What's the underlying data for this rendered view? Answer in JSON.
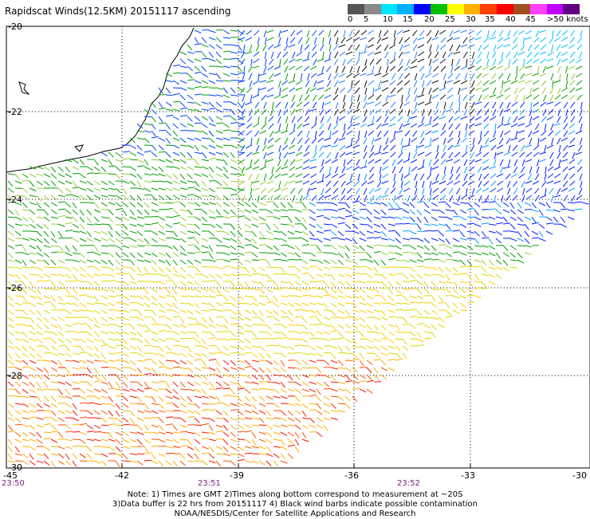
{
  "title": "Rapidscat Winds(12.5KM) 20151117 ascending",
  "legend": {
    "labels": [
      "0",
      "5",
      "10",
      "15",
      "20",
      "25",
      "30",
      "35",
      "40",
      "45",
      ">50 knots"
    ],
    "colors": [
      "#555555",
      "#8a8a8a",
      "#00e6ff",
      "#00b0ff",
      "#0000ff",
      "#00c000",
      "#ffff00",
      "#ffb000",
      "#ff4000",
      "#ff0000",
      "#a05020",
      "#ff40ff",
      "#c000ff",
      "#600080"
    ]
  },
  "axes": {
    "lat_labels": [
      "-20",
      "-22",
      "-24",
      "-26",
      "-28",
      "-30"
    ],
    "lon_labels": [
      "-45",
      "-42",
      "-39",
      "-36",
      "-33",
      "-30"
    ]
  },
  "times": [
    "23:50",
    "23:51",
    "23:52"
  ],
  "notes": [
    "Note: 1) Times are GMT 2)Times along bottom correspond to measurement at ~20S",
    "3)Data buffer is 22 hrs from 20151117 4) Black wind barbs indicate possible contamination",
    "NOAA/NESDIS/Center for Satellite Applications and Research"
  ]
}
